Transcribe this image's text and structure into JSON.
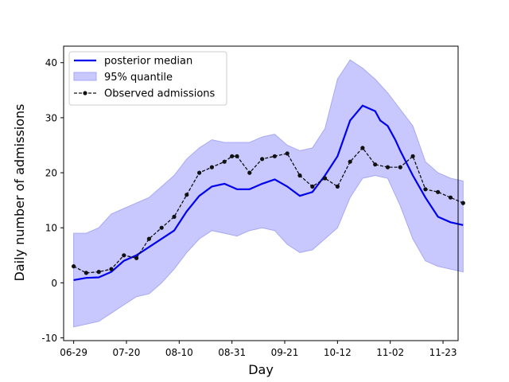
{
  "chart_data": {
    "type": "line",
    "title": "",
    "xlabel": "Day",
    "ylabel": "Daily number of admissions",
    "xlim": [
      -4,
      153
    ],
    "ylim": [
      -10.5,
      43
    ],
    "grid": false,
    "legend_position": "top-left",
    "x_tick_labels": [
      "06-29",
      "07-20",
      "08-10",
      "08-31",
      "09-21",
      "10-12",
      "11-02",
      "11-23"
    ],
    "x_tick_days": [
      0,
      21,
      42,
      63,
      84,
      105,
      126,
      147
    ],
    "y_ticks": [
      -10,
      0,
      10,
      20,
      30,
      40
    ],
    "colors": {
      "median": "#0000ee",
      "band": "#c8c8ff",
      "band_edge": "#a8a8f4",
      "observed": "#111111"
    },
    "legend": [
      "posterior median",
      "95% quantile",
      "Observed admissions"
    ],
    "series": [
      {
        "name": "posterior median",
        "style": "line",
        "x": [
          0,
          5,
          10,
          15,
          20,
          25,
          30,
          35,
          40,
          45,
          50,
          55,
          60,
          65,
          70,
          75,
          80,
          85,
          90,
          95,
          100,
          105,
          110,
          115,
          120,
          122,
          125,
          128,
          130,
          135,
          140,
          145,
          150,
          155
        ],
        "y": [
          0.5,
          0.9,
          1.0,
          2.0,
          4.0,
          5.0,
          6.5,
          8.0,
          9.5,
          13.0,
          15.8,
          17.5,
          18.0,
          17.0,
          17.0,
          18.0,
          18.8,
          17.5,
          15.8,
          16.5,
          19.5,
          23.0,
          29.5,
          32.2,
          31.2,
          29.5,
          28.5,
          26.0,
          24.0,
          19.5,
          15.5,
          12.0,
          11.0,
          10.5
        ]
      },
      {
        "name": "95% quantile",
        "style": "band",
        "x": [
          0,
          5,
          10,
          15,
          20,
          25,
          30,
          35,
          40,
          45,
          50,
          55,
          60,
          65,
          70,
          75,
          80,
          85,
          90,
          95,
          100,
          105,
          110,
          115,
          120,
          125,
          130,
          135,
          140,
          145,
          150,
          155
        ],
        "lower": [
          -8.0,
          -7.5,
          -7.0,
          -5.5,
          -4.0,
          -2.5,
          -2.0,
          0.0,
          2.5,
          5.5,
          8.0,
          9.5,
          9.0,
          8.5,
          9.5,
          10.0,
          9.5,
          7.0,
          5.5,
          6.0,
          8.0,
          10.0,
          15.5,
          19.0,
          19.5,
          19.0,
          14.0,
          8.0,
          4.0,
          3.0,
          2.5,
          2.0
        ],
        "upper": [
          9.0,
          9.0,
          10.0,
          12.5,
          13.5,
          14.5,
          15.5,
          17.5,
          19.5,
          22.5,
          24.5,
          26.0,
          25.5,
          25.5,
          25.5,
          26.5,
          27.0,
          25.0,
          24.0,
          24.5,
          28.0,
          37.0,
          40.5,
          39.0,
          37.0,
          34.5,
          31.5,
          28.5,
          22.0,
          20.0,
          19.0,
          18.5
        ]
      },
      {
        "name": "Observed admissions",
        "style": "dashed-dots",
        "x": [
          0,
          5,
          10,
          15,
          20,
          25,
          30,
          35,
          40,
          45,
          50,
          55,
          60,
          63,
          65,
          70,
          75,
          80,
          85,
          90,
          95,
          100,
          105,
          110,
          115,
          120,
          125,
          130,
          135,
          140,
          145,
          150,
          155
        ],
        "y": [
          3.0,
          1.8,
          2.0,
          2.5,
          5.0,
          4.5,
          8.0,
          10.0,
          12.0,
          16.0,
          20.0,
          21.0,
          22.0,
          23.0,
          23.0,
          20.0,
          22.5,
          23.0,
          23.5,
          19.5,
          17.5,
          19.0,
          17.5,
          22.0,
          24.5,
          21.5,
          21.0,
          21.0,
          23.0,
          17.0,
          16.5,
          15.5,
          14.5
        ]
      }
    ]
  }
}
